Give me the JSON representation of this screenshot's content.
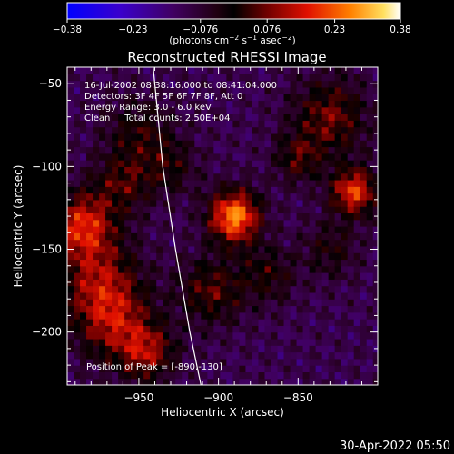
{
  "chart_data": {
    "type": "heatmap",
    "title": "Reconstructed RHESSI Image",
    "xlabel": "Heliocentric X (arcsec)",
    "ylabel": "Heliocentric Y (arcsec)",
    "xlim": [
      -995,
      -800
    ],
    "ylim": [
      -232,
      -40
    ],
    "x_ticks": [
      -950,
      -900,
      -850
    ],
    "x_tick_labels": [
      "−950",
      "−900",
      "−850"
    ],
    "y_ticks": [
      -50,
      -100,
      -150,
      -200
    ],
    "y_tick_labels": [
      "−50",
      "−100",
      "−150",
      "−200"
    ],
    "colorbar": {
      "range": [
        -0.38,
        0.38
      ],
      "ticks": [
        -0.38,
        -0.23,
        -0.076,
        0.076,
        0.23,
        0.38
      ],
      "tick_labels": [
        "−0.38",
        "−0.23",
        "−0.076",
        "0.076",
        "0.23",
        "0.38"
      ],
      "label": "(photons cm",
      "label_exp1": "−2",
      "label_mid": " s",
      "label_exp2": "−1",
      "label_end": " asec",
      "label_exp3": "−2",
      "label_close": ")"
    },
    "annotations": {
      "line1": "16-Jul-2002 08:38:16.000 to 08:41:04.000",
      "line2": "Detectors: 3F 4F 5F 6F 7F 8F, Att 0",
      "line3": "Energy Range: 3.0 - 6.0 keV",
      "line4": "Clean     Total counts: 2.50E+04",
      "peak": "Position of Peak = [-890,-130]"
    },
    "peak": [
      -890,
      -130
    ],
    "sources": [
      {
        "x": -890,
        "y": -130,
        "amplitude": 0.38,
        "width": 11
      },
      {
        "x": -985,
        "y": -135,
        "amplitude": 0.27,
        "width": 14
      },
      {
        "x": -975,
        "y": -170,
        "amplitude": 0.2,
        "width": 18
      },
      {
        "x": -965,
        "y": -195,
        "amplitude": 0.18,
        "width": 16
      },
      {
        "x": -945,
        "y": -212,
        "amplitude": 0.2,
        "width": 12
      },
      {
        "x": -905,
        "y": -175,
        "amplitude": 0.16,
        "width": 14
      },
      {
        "x": -870,
        "y": -165,
        "amplitude": 0.12,
        "width": 12
      },
      {
        "x": -815,
        "y": -115,
        "amplitude": 0.3,
        "width": 10
      },
      {
        "x": -830,
        "y": -70,
        "amplitude": 0.18,
        "width": 16
      },
      {
        "x": -850,
        "y": -95,
        "amplitude": 0.14,
        "width": 10
      },
      {
        "x": -830,
        "y": -150,
        "amplitude": 0.1,
        "width": 12
      },
      {
        "x": -950,
        "y": -80,
        "amplitude": 0.12,
        "width": 15
      },
      {
        "x": -930,
        "y": -100,
        "amplitude": 0.1,
        "width": 12
      },
      {
        "x": -960,
        "y": -110,
        "amplitude": 0.14,
        "width": 12
      }
    ],
    "limb_curve": [
      [
        -941,
        -40
      ],
      [
        -935,
        -100
      ],
      [
        -927,
        -150
      ],
      [
        -918,
        -200
      ],
      [
        -911,
        -232
      ]
    ]
  },
  "footer": {
    "timestamp": "30-Apr-2022 05:50"
  }
}
